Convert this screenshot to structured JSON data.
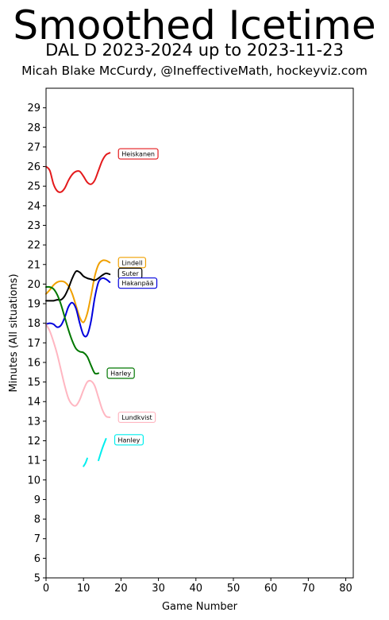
{
  "header": {
    "title": "Smoothed Icetime",
    "subtitle": "DAL D 2023-2024 up to 2023-11-23",
    "credit": "Micah Blake McCurdy, @IneffectiveMath, hockeyviz.com"
  },
  "chart_data": {
    "type": "line",
    "title": "Smoothed Icetime",
    "xlabel": "Game Number",
    "ylabel": "Minutes (All situations)",
    "xlim": [
      0,
      82
    ],
    "ylim": [
      5,
      30
    ],
    "xticks": [
      0,
      10,
      20,
      30,
      40,
      50,
      60,
      70,
      80
    ],
    "yticks": [
      5,
      6,
      7,
      8,
      9,
      10,
      11,
      12,
      13,
      14,
      15,
      16,
      17,
      18,
      19,
      20,
      21,
      22,
      23,
      24,
      25,
      26,
      27,
      28,
      29
    ],
    "grid": false,
    "legend": "end-of-line labels",
    "series": [
      {
        "name": "Heiskanen",
        "color": "#e41a1c",
        "x": [
          0,
          1,
          2,
          3,
          4,
          5,
          6,
          7,
          8,
          9,
          10,
          11,
          12,
          13,
          14,
          15,
          16,
          17
        ],
        "y": [
          26.0,
          25.8,
          25.1,
          24.75,
          24.7,
          24.9,
          25.3,
          25.6,
          25.75,
          25.75,
          25.5,
          25.2,
          25.1,
          25.3,
          25.8,
          26.3,
          26.6,
          26.7
        ],
        "label_y": 26.65
      },
      {
        "name": "Lindell",
        "color": "#f0a000",
        "x": [
          0,
          1,
          2,
          3,
          4,
          5,
          6,
          7,
          8,
          9,
          10,
          11,
          12,
          13,
          14,
          15,
          16,
          17
        ],
        "y": [
          19.5,
          19.7,
          19.95,
          20.1,
          20.15,
          20.1,
          19.9,
          19.5,
          18.9,
          18.3,
          18.05,
          18.5,
          19.4,
          20.4,
          21.0,
          21.2,
          21.2,
          21.1
        ],
        "label_y": 21.1
      },
      {
        "name": "Suter",
        "color": "#000000",
        "x": [
          0,
          1,
          2,
          3,
          4,
          5,
          6,
          7,
          8,
          9,
          10,
          11,
          12,
          13,
          14,
          15,
          16,
          17
        ],
        "y": [
          19.15,
          19.15,
          19.15,
          19.2,
          19.2,
          19.4,
          19.8,
          20.3,
          20.65,
          20.6,
          20.4,
          20.3,
          20.25,
          20.2,
          20.3,
          20.45,
          20.55,
          20.5
        ],
        "label_y": 20.55
      },
      {
        "name": "Hakanpää",
        "color": "#0000dd",
        "x": [
          0,
          1,
          2,
          3,
          4,
          5,
          6,
          7,
          8,
          9,
          10,
          11,
          12,
          13,
          14,
          15,
          16,
          17
        ],
        "y": [
          17.95,
          18.0,
          17.95,
          17.8,
          17.9,
          18.3,
          18.85,
          19.05,
          18.75,
          18.0,
          17.4,
          17.4,
          18.1,
          19.3,
          20.1,
          20.3,
          20.25,
          20.1
        ],
        "label_y": 20.05
      },
      {
        "name": "Harley",
        "color": "#007700",
        "x": [
          0,
          1,
          2,
          3,
          4,
          5,
          6,
          7,
          8,
          9,
          10,
          11,
          12,
          13,
          14
        ],
        "y": [
          19.85,
          19.85,
          19.75,
          19.45,
          18.95,
          18.3,
          17.65,
          17.1,
          16.7,
          16.55,
          16.5,
          16.3,
          15.85,
          15.45,
          15.45
        ],
        "label_y": 15.45
      },
      {
        "name": "Lundkvist",
        "color": "#ffb6c1",
        "x": [
          0,
          1,
          2,
          3,
          4,
          5,
          6,
          7,
          8,
          9,
          10,
          11,
          12,
          13,
          14,
          15,
          16,
          17
        ],
        "y": [
          17.95,
          17.6,
          17.05,
          16.4,
          15.6,
          14.8,
          14.15,
          13.85,
          13.8,
          14.1,
          14.6,
          15.0,
          15.05,
          14.8,
          14.2,
          13.6,
          13.25,
          13.2
        ],
        "label_y": 13.2
      },
      {
        "name": "Hanley",
        "color": "#00eeee",
        "segments": [
          {
            "x": [
              10,
              10.5,
              11
            ],
            "y": [
              10.7,
              10.85,
              11.1
            ]
          },
          {
            "x": [
              14,
              15,
              16
            ],
            "y": [
              11.0,
              11.6,
              12.1
            ]
          }
        ],
        "label_y": 12.05
      }
    ]
  }
}
